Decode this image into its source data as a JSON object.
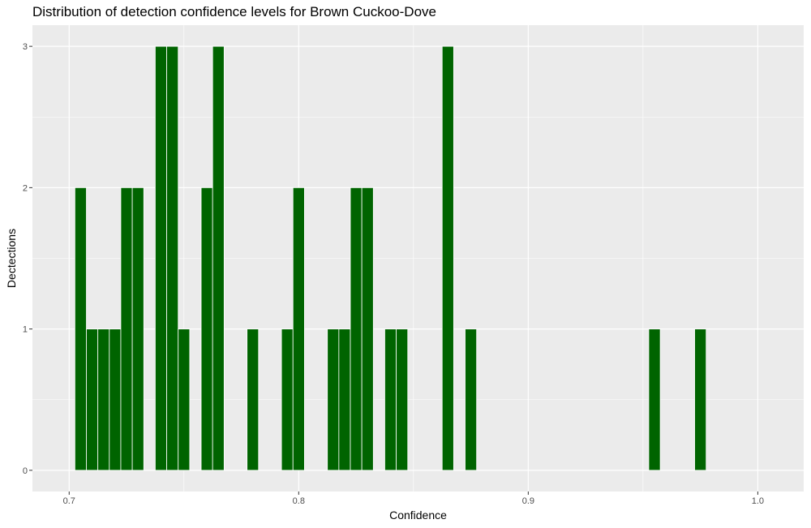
{
  "chart_data": {
    "type": "bar",
    "title": "Distribution of detection confidence levels for Brown Cuckoo-Dove",
    "xlabel": "Confidence",
    "ylabel": "Dectections",
    "xlim": [
      0.684,
      1.02
    ],
    "ylim": [
      -0.15,
      3.15
    ],
    "binwidth": 0.005,
    "x_ticks": [
      0.7,
      0.8,
      0.9,
      1.0
    ],
    "x_tick_labels": [
      "0.7",
      "0.8",
      "0.9",
      "1.0"
    ],
    "y_ticks": [
      0,
      1,
      2,
      3
    ],
    "y_tick_labels": [
      "0",
      "1",
      "2",
      "3"
    ],
    "grid": true,
    "bar_color": "#006400",
    "panel_color": "#ebebeb",
    "bins": [
      {
        "x": 0.705,
        "count": 2
      },
      {
        "x": 0.71,
        "count": 1
      },
      {
        "x": 0.715,
        "count": 1
      },
      {
        "x": 0.72,
        "count": 1
      },
      {
        "x": 0.725,
        "count": 2
      },
      {
        "x": 0.73,
        "count": 2
      },
      {
        "x": 0.74,
        "count": 3
      },
      {
        "x": 0.745,
        "count": 3
      },
      {
        "x": 0.75,
        "count": 1
      },
      {
        "x": 0.76,
        "count": 2
      },
      {
        "x": 0.765,
        "count": 3
      },
      {
        "x": 0.78,
        "count": 1
      },
      {
        "x": 0.795,
        "count": 1
      },
      {
        "x": 0.8,
        "count": 2
      },
      {
        "x": 0.815,
        "count": 1
      },
      {
        "x": 0.82,
        "count": 1
      },
      {
        "x": 0.825,
        "count": 2
      },
      {
        "x": 0.83,
        "count": 2
      },
      {
        "x": 0.84,
        "count": 1
      },
      {
        "x": 0.845,
        "count": 1
      },
      {
        "x": 0.865,
        "count": 3
      },
      {
        "x": 0.875,
        "count": 1
      },
      {
        "x": 0.955,
        "count": 1
      },
      {
        "x": 0.975,
        "count": 1
      }
    ]
  }
}
